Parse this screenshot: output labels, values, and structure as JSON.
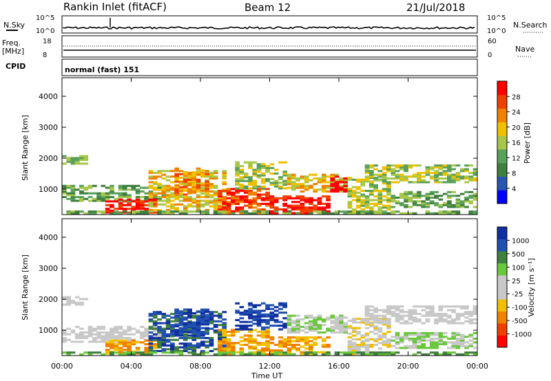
{
  "header": {
    "station": "Rankin Inlet (fitACF)",
    "beam": "Beam 12",
    "date": "21/Jul/2018"
  },
  "status_panels": {
    "nsky_label": "N.Sky",
    "nsearch_label": "N.Search",
    "nsky_ticks": [
      "10^5",
      "10^0"
    ],
    "nsearch_ticks": [
      "10^5",
      "10^0"
    ],
    "freq_label_line1": "Freq.",
    "freq_label_line2": "[MHz]",
    "freq_ticks": [
      "18",
      "8"
    ],
    "nave_label": "Nave",
    "nave_ticks": [
      "60",
      "0"
    ],
    "cpid_label": "CPID",
    "cpid_text": "normal (fast) 151"
  },
  "colors": {
    "power": [
      "#0000ff",
      "#2a55b0",
      "#3f7f3f",
      "#5aa05a",
      "#a7c64a",
      "#f0c000",
      "#f08000",
      "#f04000",
      "#ff0000"
    ],
    "velocity": [
      "#ff0000",
      "#f04000",
      "#f08000",
      "#f0c000",
      "#c8c8c8",
      "#c8c8c8",
      "#6ac83c",
      "#3f7f3f",
      "#2050b0",
      "#1030a0"
    ]
  },
  "chart_data": [
    {
      "type": "heatmap",
      "title": "Power",
      "xlabel": "Time UT",
      "ylabel": "Slant Range [km]",
      "colorbar_label": "Power [dB]",
      "x_ticks": [
        "00:00",
        "04:00",
        "08:00",
        "12:00",
        "16:00",
        "20:00",
        "00:00"
      ],
      "y_ticks": [
        "4000",
        "3000",
        "2000",
        "1000"
      ],
      "ylim": [
        180,
        4600
      ],
      "colorbar_ticks": [
        "28",
        "24",
        "20",
        "16",
        "12",
        "8",
        "4"
      ],
      "colorbar_range": [
        0,
        32
      ],
      "x_range_hours": [
        0,
        24
      ]
    },
    {
      "type": "heatmap",
      "title": "Velocity",
      "xlabel": "Time UT",
      "ylabel": "Slant Range [km]",
      "colorbar_label": "Velocity [m s⁻¹]",
      "x_ticks": [
        "00:00",
        "04:00",
        "08:00",
        "12:00",
        "16:00",
        "20:00",
        "00:00"
      ],
      "y_ticks": [
        "4000",
        "3000",
        "2000",
        "1000"
      ],
      "ylim": [
        180,
        4600
      ],
      "colorbar_ticks": [
        "1000",
        "500",
        "100",
        "25",
        "-25",
        "-100",
        "-500",
        "-1000"
      ],
      "x_range_hours": [
        0,
        24
      ]
    }
  ]
}
